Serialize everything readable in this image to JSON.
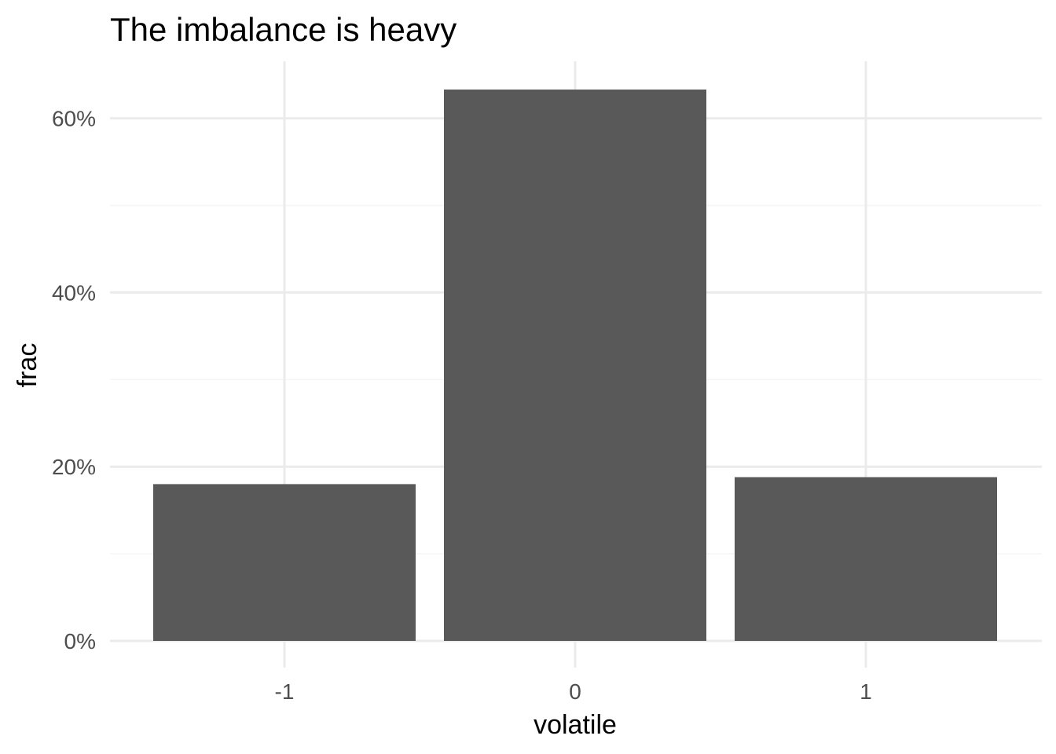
{
  "chart_data": {
    "type": "bar",
    "title": "The imbalance is heavy",
    "xlabel": "volatile",
    "ylabel": "frac",
    "categories": [
      "-1",
      "0",
      "1"
    ],
    "values": [
      0.18,
      0.633,
      0.188
    ],
    "ylim": [
      0,
      0.66
    ],
    "y_ticks": [
      0,
      0.2,
      0.4,
      0.6
    ],
    "y_tick_labels": [
      "0%",
      "20%",
      "40%",
      "60%"
    ],
    "y_minor_ticks": [
      0.1,
      0.3,
      0.5
    ],
    "grid": true,
    "legend": "none",
    "colors": {
      "bar": "#595959",
      "grid_major": "#ebebeb",
      "grid_minor": "#f5f5f5",
      "background": "#ffffff"
    }
  }
}
